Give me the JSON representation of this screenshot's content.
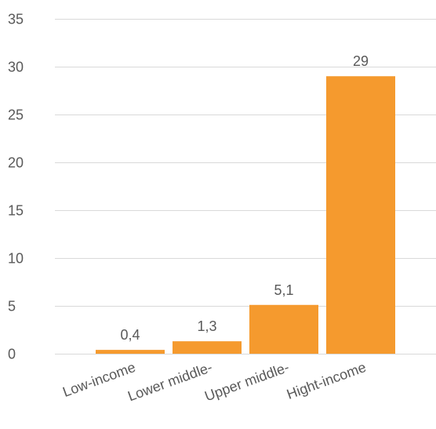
{
  "chart_data": {
    "type": "bar",
    "categories": [
      "Low-income",
      "Lower middle-",
      "Upper middle-",
      "Hight-income"
    ],
    "values": [
      0.4,
      1.3,
      5.1,
      29
    ],
    "data_labels": [
      "0,4",
      "1,3",
      "5,1",
      "29"
    ],
    "ylim": [
      0,
      35
    ],
    "yticks": [
      0,
      5,
      10,
      15,
      20,
      25,
      30,
      35
    ],
    "bar_color": "#f59a2e",
    "grid": true,
    "legend": "none"
  }
}
